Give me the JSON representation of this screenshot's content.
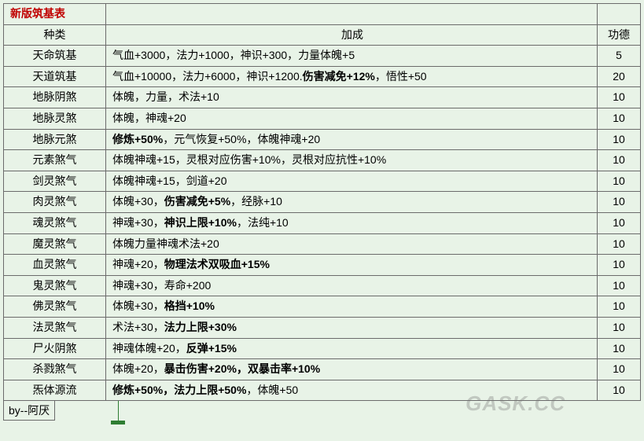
{
  "title": "新版筑基表",
  "headers": {
    "type": "种类",
    "bonus": "加成",
    "merit": "功德"
  },
  "rows": [
    {
      "type": "天命筑基",
      "bonus_parts": [
        {
          "t": "气血+3000，法力+1000，神识+300，力量体魄+5",
          "b": false
        }
      ],
      "merit": "5"
    },
    {
      "type": "天道筑基",
      "bonus_parts": [
        {
          "t": "气血+10000，法力+6000，神识+1200.",
          "b": false
        },
        {
          "t": "伤害减免+12%",
          "b": true
        },
        {
          "t": "，悟性+50",
          "b": false
        }
      ],
      "merit": "20"
    },
    {
      "type": "地脉阴煞",
      "bonus_parts": [
        {
          "t": "体魄，力量，术法+10",
          "b": false
        }
      ],
      "merit": "10"
    },
    {
      "type": "地脉灵煞",
      "bonus_parts": [
        {
          "t": "体魄，神魂+20",
          "b": false
        }
      ],
      "merit": "10"
    },
    {
      "type": "地脉元煞",
      "bonus_parts": [
        {
          "t": "修炼+50%",
          "b": true
        },
        {
          "t": "，元气恢复+50%，体魄神魂+20",
          "b": false
        }
      ],
      "merit": "10"
    },
    {
      "type": "元素煞气",
      "bonus_parts": [
        {
          "t": "体魄神魂+15，灵根对应伤害+10%，灵根对应抗性+10%",
          "b": false
        }
      ],
      "merit": "10"
    },
    {
      "type": "剑灵煞气",
      "bonus_parts": [
        {
          "t": "体魄神魂+15，剑道+20",
          "b": false
        }
      ],
      "merit": "10"
    },
    {
      "type": "肉灵煞气",
      "bonus_parts": [
        {
          "t": "体魄+30，",
          "b": false
        },
        {
          "t": "伤害减免+5%",
          "b": true
        },
        {
          "t": "，经脉+10",
          "b": false
        }
      ],
      "merit": "10"
    },
    {
      "type": "魂灵煞气",
      "bonus_parts": [
        {
          "t": "神魂+30，",
          "b": false
        },
        {
          "t": "神识上限+10%",
          "b": true
        },
        {
          "t": "，法纯+10",
          "b": false
        }
      ],
      "merit": "10"
    },
    {
      "type": "魔灵煞气",
      "bonus_parts": [
        {
          "t": "体魄力量神魂术法+20",
          "b": false
        }
      ],
      "merit": "10"
    },
    {
      "type": "血灵煞气",
      "bonus_parts": [
        {
          "t": "神魂+20，",
          "b": false
        },
        {
          "t": "物理法术双吸血+15%",
          "b": true
        }
      ],
      "merit": "10"
    },
    {
      "type": "鬼灵煞气",
      "bonus_parts": [
        {
          "t": "神魂+30，寿命+200",
          "b": false
        }
      ],
      "merit": "10"
    },
    {
      "type": "佛灵煞气",
      "bonus_parts": [
        {
          "t": "体魄+30，",
          "b": false
        },
        {
          "t": "格挡+10%",
          "b": true
        }
      ],
      "merit": "10"
    },
    {
      "type": "法灵煞气",
      "bonus_parts": [
        {
          "t": "术法+30，",
          "b": false
        },
        {
          "t": "法力上限+30%",
          "b": true
        }
      ],
      "merit": "10"
    },
    {
      "type": "尸火阴煞",
      "bonus_parts": [
        {
          "t": "神魂体魄+20，",
          "b": false
        },
        {
          "t": "反弹+15%",
          "b": true
        }
      ],
      "merit": "10"
    },
    {
      "type": "杀戮煞气",
      "bonus_parts": [
        {
          "t": "体魄+20，",
          "b": false
        },
        {
          "t": "暴击伤害+20%，双暴击率+10%",
          "b": true
        }
      ],
      "merit": "10"
    },
    {
      "type": "炁体源流",
      "bonus_parts": [
        {
          "t": "修炼+50%，法力上限+50%",
          "b": true
        },
        {
          "t": "，体魄+50",
          "b": false
        }
      ],
      "merit": "10"
    }
  ],
  "byline": "by--阿厌",
  "watermark": "GASK.CC",
  "colors": {
    "background": "#e8f3e7",
    "border": "#6b6b6b",
    "title": "#c00000",
    "text": "#000000",
    "cursor": "#2e7d32"
  }
}
